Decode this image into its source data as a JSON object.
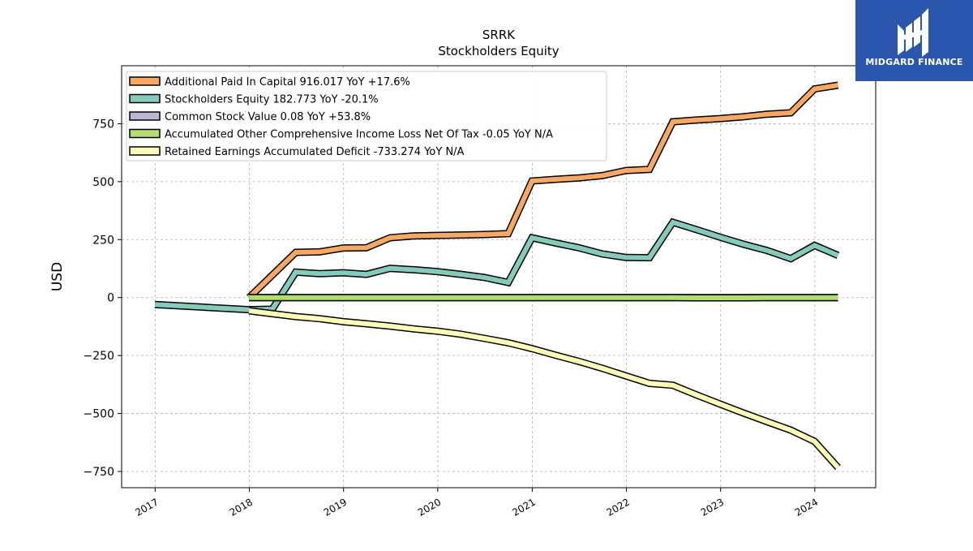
{
  "brand": {
    "name": "MIDGARD FINANCE",
    "bg_color": "#2a57ad",
    "icon": "midgard-logo-icon"
  },
  "chart_data": {
    "type": "line",
    "title": "SRRK",
    "subtitle": "Stockholders  Equity",
    "ylabel": "USD",
    "xlabel": "",
    "ylim": [
      -820,
      1000
    ],
    "xlim": [
      "2016-08-24",
      "2024-08-24"
    ],
    "yticks": [
      -750,
      -500,
      -250,
      0,
      250,
      500,
      750
    ],
    "ytick_labels": [
      "−750",
      "−500",
      "−250",
      "0",
      "250",
      "500",
      "750"
    ],
    "xtick_labels": [
      "2017",
      "2018",
      "2019",
      "2020",
      "2021",
      "2022",
      "2023",
      "2024"
    ],
    "grid": true,
    "legend_position": "top-left",
    "series": [
      {
        "name": "Additional Paid In Capital  916.017 YoY +17.6%",
        "color": "#f7a863",
        "points": [
          [
            "2017-12-31",
            0
          ],
          [
            "2018-06-30",
            195
          ],
          [
            "2018-09-30",
            197
          ],
          [
            "2018-12-31",
            214
          ],
          [
            "2019-03-31",
            215
          ],
          [
            "2019-06-30",
            258
          ],
          [
            "2019-09-30",
            266
          ],
          [
            "2019-12-31",
            268
          ],
          [
            "2020-03-31",
            270
          ],
          [
            "2020-06-30",
            272
          ],
          [
            "2020-09-30",
            276
          ],
          [
            "2020-12-31",
            503
          ],
          [
            "2021-03-31",
            510
          ],
          [
            "2021-06-30",
            516
          ],
          [
            "2021-09-30",
            526
          ],
          [
            "2021-12-31",
            548
          ],
          [
            "2022-03-31",
            553
          ],
          [
            "2022-06-30",
            758
          ],
          [
            "2022-09-30",
            766
          ],
          [
            "2022-12-31",
            772
          ],
          [
            "2023-03-31",
            780
          ],
          [
            "2023-06-30",
            791
          ],
          [
            "2023-09-30",
            797
          ],
          [
            "2023-12-31",
            900
          ],
          [
            "2024-03-31",
            916
          ]
        ]
      },
      {
        "name": "Stockholders Equity  182.773 YoY -20.1%",
        "color": "#84cbbc",
        "points": [
          [
            "2016-12-31",
            -30
          ],
          [
            "2017-12-31",
            -52
          ],
          [
            "2018-03-31",
            -50
          ],
          [
            "2018-06-30",
            110
          ],
          [
            "2018-09-30",
            103
          ],
          [
            "2018-12-31",
            107
          ],
          [
            "2019-03-31",
            100
          ],
          [
            "2019-06-30",
            126
          ],
          [
            "2019-09-30",
            120
          ],
          [
            "2019-12-31",
            112
          ],
          [
            "2020-03-31",
            100
          ],
          [
            "2020-06-30",
            87
          ],
          [
            "2020-09-30",
            65
          ],
          [
            "2020-12-31",
            258
          ],
          [
            "2021-03-31",
            236
          ],
          [
            "2021-06-30",
            215
          ],
          [
            "2021-09-30",
            188
          ],
          [
            "2021-12-31",
            173
          ],
          [
            "2022-03-31",
            172
          ],
          [
            "2022-06-30",
            325
          ],
          [
            "2022-09-30",
            293
          ],
          [
            "2022-12-31",
            260
          ],
          [
            "2023-03-31",
            230
          ],
          [
            "2023-06-30",
            203
          ],
          [
            "2023-09-30",
            168
          ],
          [
            "2023-12-31",
            225
          ],
          [
            "2024-03-31",
            182
          ]
        ]
      },
      {
        "name": "Common Stock Value  0.08 YoY +53.8%",
        "color": "#bcb6d6",
        "points": [
          [
            "2017-12-31",
            0.05
          ],
          [
            "2024-03-31",
            0.08
          ]
        ]
      },
      {
        "name": "Accumulated Other Comprehensive Income Loss Net Of Tax  -0.05 YoY N/A",
        "color": "#b4dd6f",
        "points": [
          [
            "2017-12-31",
            0
          ],
          [
            "2020-12-31",
            0
          ],
          [
            "2022-06-30",
            0
          ],
          [
            "2022-09-30",
            -1
          ],
          [
            "2023-03-31",
            -1
          ],
          [
            "2023-06-30",
            0
          ],
          [
            "2024-03-31",
            -0.05
          ]
        ]
      },
      {
        "name": "Retained Earnings Accumulated Deficit  -733.274 YoY N/A",
        "color": "#fefeb8",
        "points": [
          [
            "2017-12-31",
            -57
          ],
          [
            "2018-06-30",
            -82
          ],
          [
            "2018-09-30",
            -91
          ],
          [
            "2018-12-31",
            -104
          ],
          [
            "2019-03-31",
            -113
          ],
          [
            "2019-06-30",
            -123
          ],
          [
            "2019-09-30",
            -135
          ],
          [
            "2019-12-31",
            -145
          ],
          [
            "2020-03-31",
            -158
          ],
          [
            "2020-06-30",
            -176
          ],
          [
            "2020-09-30",
            -195
          ],
          [
            "2020-12-31",
            -220
          ],
          [
            "2021-03-31",
            -248
          ],
          [
            "2021-06-30",
            -275
          ],
          [
            "2021-09-30",
            -305
          ],
          [
            "2021-12-31",
            -338
          ],
          [
            "2022-03-31",
            -370
          ],
          [
            "2022-06-30",
            -378
          ],
          [
            "2022-09-30",
            -420
          ],
          [
            "2022-12-31",
            -460
          ],
          [
            "2023-03-31",
            -498
          ],
          [
            "2023-06-30",
            -535
          ],
          [
            "2023-09-30",
            -572
          ],
          [
            "2023-12-31",
            -620
          ],
          [
            "2024-03-31",
            -733
          ]
        ]
      }
    ]
  }
}
